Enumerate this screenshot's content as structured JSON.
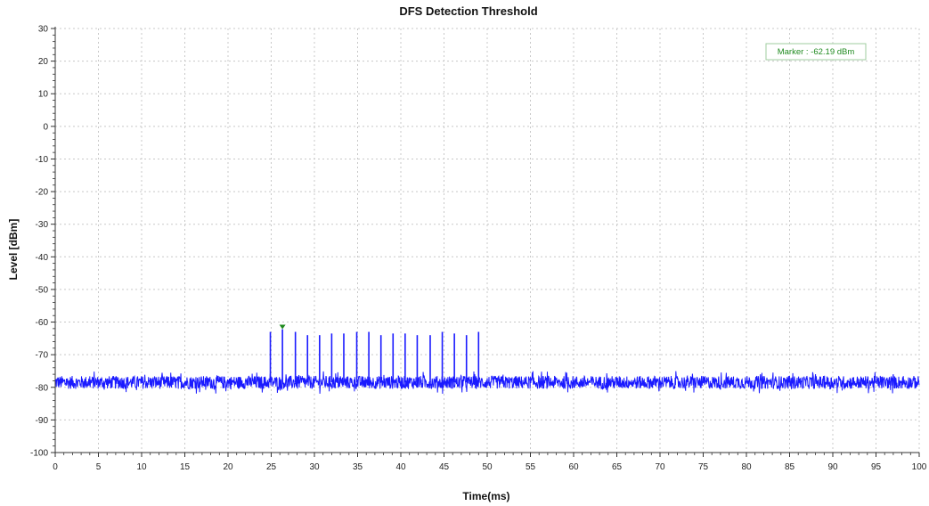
{
  "chart_data": {
    "type": "line",
    "title": "DFS Detection Threshold",
    "xlabel": "Time(ms)",
    "ylabel": "Level [dBm]",
    "xlim": [
      0,
      100
    ],
    "ylim": [
      -100,
      30
    ],
    "x_ticks": [
      "0",
      "5",
      "10",
      "15",
      "20",
      "25",
      "30",
      "35",
      "40",
      "45",
      "50",
      "55",
      "60",
      "65",
      "70",
      "75",
      "80",
      "85",
      "90",
      "95",
      "100"
    ],
    "y_ticks": [
      "30",
      "20",
      "10",
      "0",
      "-10",
      "-20",
      "-30",
      "-40",
      "-50",
      "-60",
      "-70",
      "-80",
      "-90",
      "-100"
    ],
    "grid": true,
    "series": [
      {
        "noise_floor_dbm": -78.5,
        "noise_spread_db": 2.5,
        "pulses": [
          {
            "x": 24.9,
            "y": -63
          },
          {
            "x": 26.3,
            "y": -62.2
          },
          {
            "x": 27.8,
            "y": -63
          },
          {
            "x": 29.2,
            "y": -64
          },
          {
            "x": 30.6,
            "y": -64
          },
          {
            "x": 32.0,
            "y": -63.5
          },
          {
            "x": 33.4,
            "y": -63.5
          },
          {
            "x": 34.9,
            "y": -63
          },
          {
            "x": 36.3,
            "y": -63
          },
          {
            "x": 37.7,
            "y": -64
          },
          {
            "x": 39.1,
            "y": -63.5
          },
          {
            "x": 40.5,
            "y": -63.5
          },
          {
            "x": 41.9,
            "y": -64
          },
          {
            "x": 43.4,
            "y": -64
          },
          {
            "x": 44.8,
            "y": -63
          },
          {
            "x": 46.2,
            "y": -63.5
          },
          {
            "x": 47.6,
            "y": -64
          },
          {
            "x": 49.0,
            "y": -63
          }
        ]
      }
    ],
    "marker": {
      "x": 26.3,
      "y": -62.19,
      "label": "Marker : -62.19 dBm"
    },
    "colors": {
      "trace": "#1a1aff",
      "marker": "#1f8a1f",
      "grid": "#c8c8c8",
      "axis": "#333333"
    }
  }
}
